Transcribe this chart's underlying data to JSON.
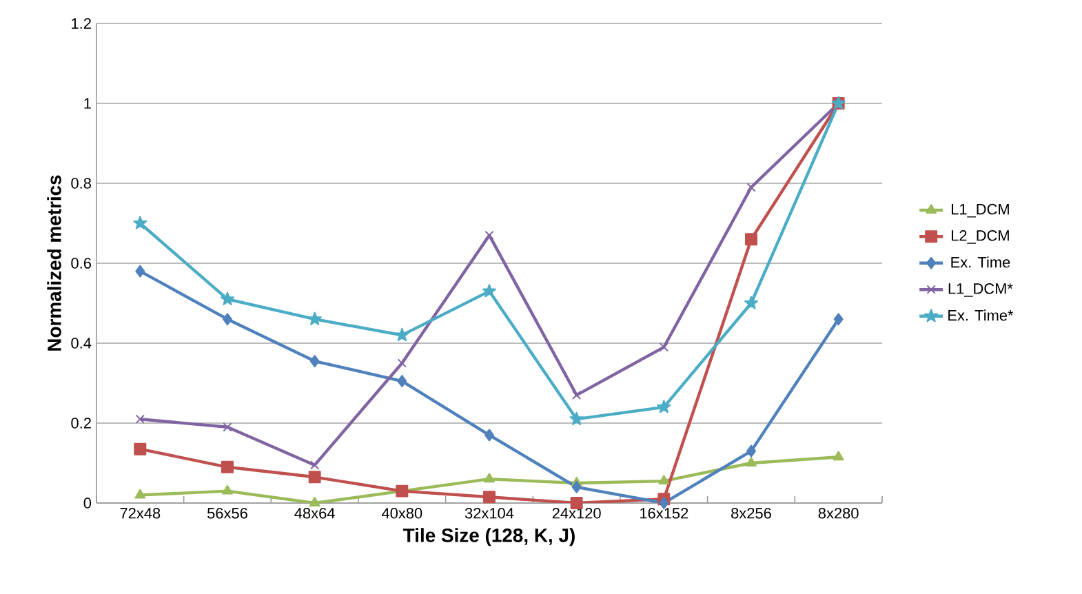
{
  "chart_data": {
    "type": "line",
    "xlabel": "Tile Size (128, K, J)",
    "ylabel": "Normalized metrics",
    "categories": [
      "72x48",
      "56x56",
      "48x64",
      "40x80",
      "32x104",
      "24x120",
      "16x152",
      "8x256",
      "8x280"
    ],
    "series": [
      {
        "name": "L1_DCM",
        "color": "#9bbb59",
        "marker": "triangle",
        "values": [
          0.02,
          0.03,
          0,
          0.03,
          0.06,
          0.05,
          0.055,
          0.1,
          0.115
        ]
      },
      {
        "name": "L2_DCM",
        "color": "#c0504d",
        "marker": "square",
        "values": [
          0.135,
          0.09,
          0.065,
          0.03,
          0.015,
          0,
          0.01,
          0.66,
          1
        ]
      },
      {
        "name": "Ex. Time",
        "color": "#4f81bd",
        "marker": "diamond",
        "values": [
          0.58,
          0.46,
          0.355,
          0.305,
          0.17,
          0.04,
          0,
          0.13,
          0.46
        ]
      },
      {
        "name": "L1_DCM*",
        "color": "#8064a2",
        "marker": "cross",
        "values": [
          0.21,
          0.19,
          0.095,
          0.35,
          0.67,
          0.27,
          0.39,
          0.79,
          1
        ]
      },
      {
        "name": "Ex. Time*",
        "color": "#4bacc6",
        "marker": "star",
        "values": [
          0.7,
          0.51,
          0.46,
          0.42,
          0.53,
          0.21,
          0.24,
          0.5,
          1
        ]
      }
    ],
    "ylim": [
      0,
      1.2
    ],
    "yticks": [
      0,
      0.2,
      0.4,
      0.6,
      0.8,
      1,
      1.2
    ],
    "grid": "y",
    "legend": "right",
    "line_style": "solid"
  }
}
